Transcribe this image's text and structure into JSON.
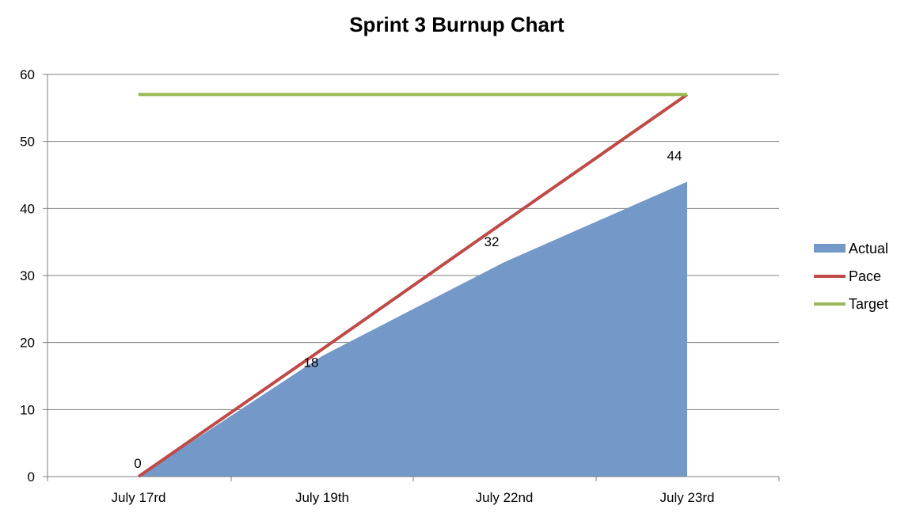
{
  "chart_data": {
    "type": "area",
    "title": "Sprint 3 Burnup Chart",
    "xlabel": "",
    "ylabel": "",
    "categories": [
      "July 17rd",
      "July 19th",
      "July 22nd",
      "July 23rd"
    ],
    "ylim": [
      0,
      60
    ],
    "yticks": [
      0,
      10,
      20,
      30,
      40,
      50,
      60
    ],
    "grid": true,
    "legend_position": "right",
    "series": [
      {
        "name": "Actual",
        "type": "area",
        "color": "#7499c8",
        "values": [
          0,
          18,
          32,
          44
        ],
        "data_labels": [
          "0",
          "18",
          "32",
          "44"
        ]
      },
      {
        "name": "Pace",
        "type": "line",
        "color": "#be4b48",
        "values": [
          0,
          19,
          38,
          57
        ]
      },
      {
        "name": "Target",
        "type": "line",
        "color": "#98b954",
        "values": [
          57,
          57,
          57,
          57
        ]
      }
    ]
  }
}
